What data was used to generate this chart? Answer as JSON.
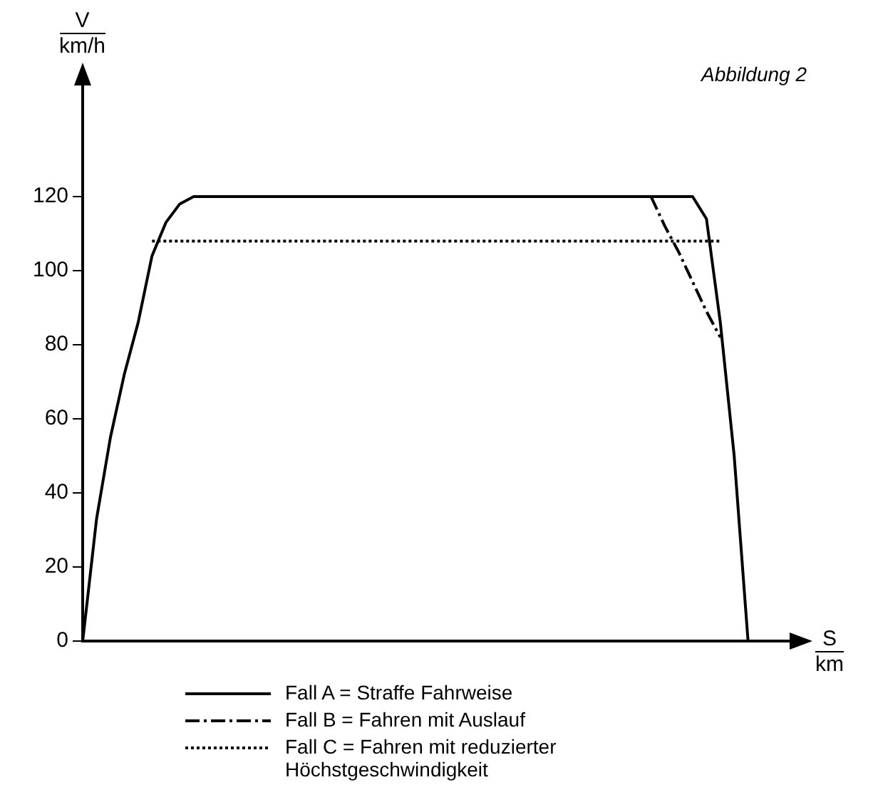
{
  "chart_data": {
    "type": "line",
    "ylabel": "V km/h",
    "xlabel": "S km",
    "annotations": [
      "Abbildung 2"
    ],
    "categories": [
      null,
      null,
      null,
      null,
      null,
      null,
      null,
      null,
      null,
      null,
      null,
      null,
      null,
      null,
      null,
      null,
      null,
      null,
      null,
      null,
      null,
      null,
      null,
      null,
      null,
      null,
      null,
      null,
      null,
      null,
      null,
      null,
      null,
      null,
      null,
      null,
      null,
      null,
      null,
      null,
      null,
      null,
      null,
      null,
      null,
      null,
      null,
      null,
      null,
      null,
      null,
      null
    ],
    "ylim": [
      0,
      150
    ],
    "yticks": [
      0,
      20,
      40,
      60,
      80,
      100,
      120
    ],
    "grid": false,
    "legend": "bottom",
    "tick_labels": "y",
    "marker": "none",
    "series": [
      {
        "name": "Fall A = Straffe Fahrweise",
        "color": "#000000",
        "line_style": "solid",
        "values": [
          0,
          33,
          55,
          72,
          86,
          104,
          113,
          118,
          120,
          120,
          120,
          120,
          120,
          120,
          120,
          120,
          120,
          120,
          120,
          120,
          120,
          120,
          120,
          120,
          120,
          120,
          120,
          120,
          120,
          120,
          120,
          120,
          120,
          120,
          120,
          120,
          120,
          120,
          120,
          120,
          120,
          120,
          120,
          120,
          120,
          114,
          86,
          50,
          0,
          null,
          null,
          null
        ]
      },
      {
        "name": "Fall B = Fahren mit Auslauf",
        "color": "#000000",
        "line_style": "dashdot",
        "values": [
          null,
          null,
          null,
          null,
          null,
          null,
          null,
          null,
          null,
          null,
          null,
          null,
          null,
          null,
          null,
          null,
          null,
          null,
          null,
          null,
          null,
          null,
          null,
          null,
          null,
          null,
          null,
          null,
          null,
          null,
          null,
          null,
          null,
          null,
          null,
          null,
          null,
          null,
          null,
          null,
          null,
          120,
          112,
          105,
          97,
          89,
          82,
          null,
          null,
          null,
          null,
          null
        ]
      },
      {
        "name": "Fall C = Fahren mit reduzierter Höchstgeschwindigkeit",
        "color": "#000000",
        "line_style": "dotted",
        "values": [
          null,
          null,
          null,
          null,
          null,
          108,
          108,
          108,
          108,
          108,
          108,
          108,
          108,
          108,
          108,
          108,
          108,
          108,
          108,
          108,
          108,
          108,
          108,
          108,
          108,
          108,
          108,
          108,
          108,
          108,
          108,
          108,
          108,
          108,
          108,
          108,
          108,
          108,
          108,
          108,
          108,
          108,
          108,
          108,
          108,
          108,
          108,
          null,
          null,
          null,
          null,
          null
        ]
      }
    ]
  }
}
